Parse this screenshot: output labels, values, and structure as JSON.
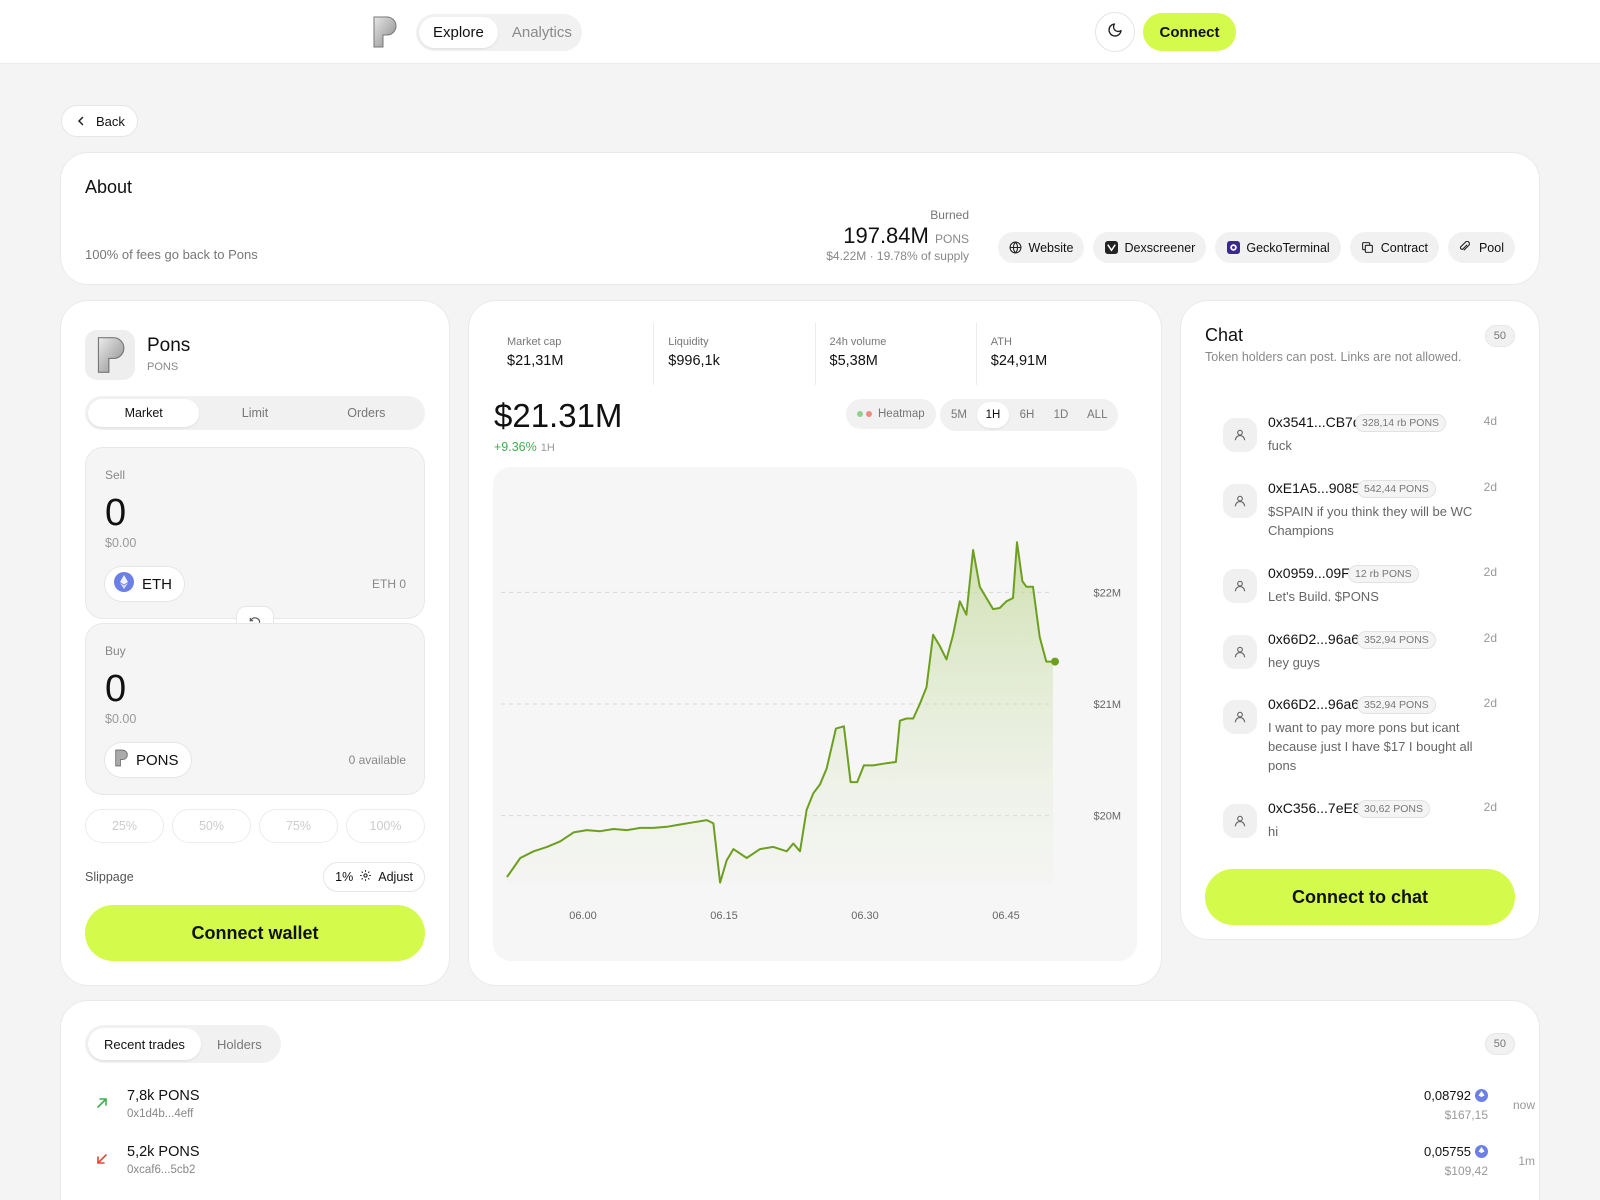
{
  "nav": {
    "tabs": [
      {
        "label": "Explore",
        "active": true
      },
      {
        "label": "Analytics",
        "active": false
      }
    ],
    "connect_label": "Connect"
  },
  "back_label": "Back",
  "about": {
    "title": "About",
    "description": "100% of fees go back to Pons",
    "burned_label": "Burned",
    "burned_value": "197.84M",
    "burned_unit": "PONS",
    "burned_sub": "$4.22M · 19.78% of supply",
    "links": [
      "Website",
      "Dexscreener",
      "GeckoTerminal",
      "Contract",
      "Pool"
    ]
  },
  "token": {
    "name": "Pons",
    "symbol": "PONS"
  },
  "swap": {
    "modes": [
      {
        "label": "Market",
        "active": true
      },
      {
        "label": "Limit",
        "active": false
      },
      {
        "label": "Orders",
        "active": false
      }
    ],
    "sell": {
      "label": "Sell",
      "amount": "0",
      "usd": "$0.00",
      "token": "ETH",
      "balance": "ETH 0"
    },
    "buy": {
      "label": "Buy",
      "amount": "0",
      "usd": "$0.00",
      "token": "PONS",
      "balance": "0 available"
    },
    "percents": [
      "25%",
      "50%",
      "75%",
      "100%"
    ],
    "slippage_label": "Slippage",
    "slippage_value": "1%",
    "adjust_label": "Adjust",
    "connect_wallet_label": "Connect wallet"
  },
  "stats": [
    {
      "label": "Market cap",
      "value": "$21,31M"
    },
    {
      "label": "Liquidity",
      "value": "$996,1k"
    },
    {
      "label": "24h volume",
      "value": "$5,38M"
    },
    {
      "label": "ATH",
      "value": "$24,91M"
    }
  ],
  "price": {
    "value": "$21.31M",
    "change": "+9.36%",
    "timeframe": "1H"
  },
  "heatmap_label": "Heatmap",
  "timeframes": [
    {
      "label": "5M",
      "active": false
    },
    {
      "label": "1H",
      "active": true
    },
    {
      "label": "6H",
      "active": false
    },
    {
      "label": "1D",
      "active": false
    },
    {
      "label": "ALL",
      "active": false
    }
  ],
  "chart_data": {
    "type": "area",
    "title": "",
    "xlabel": "",
    "ylabel": "",
    "x_ticks": [
      "06.00",
      "06.15",
      "06.30",
      "06.45"
    ],
    "y_ticks": [
      "$20M",
      "$21M",
      "$22M"
    ],
    "ylim": [
      19.45,
      22.55
    ],
    "grid": true,
    "legend": "none",
    "color": "#6d9f1e",
    "series": [
      {
        "name": "",
        "points": [
          [
            0,
            19.45
          ],
          [
            1,
            19.62
          ],
          [
            2,
            19.68
          ],
          [
            3,
            19.72
          ],
          [
            4,
            19.77
          ],
          [
            5,
            19.85
          ],
          [
            6,
            19.87
          ],
          [
            7,
            19.86
          ],
          [
            8,
            19.88
          ],
          [
            9,
            19.87
          ],
          [
            10,
            19.89
          ],
          [
            11,
            19.89
          ],
          [
            12,
            19.9
          ],
          [
            13,
            19.92
          ],
          [
            14,
            19.94
          ],
          [
            15,
            19.96
          ],
          [
            15.5,
            19.93
          ],
          [
            16,
            19.4
          ],
          [
            16.5,
            19.6
          ],
          [
            17,
            19.7
          ],
          [
            18,
            19.62
          ],
          [
            19,
            19.7
          ],
          [
            20,
            19.72
          ],
          [
            21,
            19.68
          ],
          [
            21.5,
            19.75
          ],
          [
            22,
            19.68
          ],
          [
            22.5,
            20.05
          ],
          [
            23,
            20.2
          ],
          [
            23.5,
            20.28
          ],
          [
            24,
            20.42
          ],
          [
            24.7,
            20.78
          ],
          [
            25.3,
            20.8
          ],
          [
            25.8,
            20.3
          ],
          [
            26.3,
            20.3
          ],
          [
            26.8,
            20.45
          ],
          [
            27.5,
            20.45
          ],
          [
            28.5,
            20.47
          ],
          [
            29.2,
            20.48
          ],
          [
            29.5,
            20.85
          ],
          [
            30,
            20.87
          ],
          [
            30.5,
            20.87
          ],
          [
            31,
            21.0
          ],
          [
            31.5,
            21.15
          ],
          [
            32,
            21.62
          ],
          [
            32.5,
            21.52
          ],
          [
            33,
            21.4
          ],
          [
            33.5,
            21.62
          ],
          [
            34,
            21.92
          ],
          [
            34.5,
            21.8
          ],
          [
            35,
            22.38
          ],
          [
            35.5,
            22.05
          ],
          [
            36,
            21.95
          ],
          [
            36.5,
            21.85
          ],
          [
            37,
            21.86
          ],
          [
            37.5,
            21.92
          ],
          [
            38,
            21.95
          ],
          [
            38.3,
            22.45
          ],
          [
            38.7,
            22.1
          ],
          [
            39,
            22.05
          ],
          [
            39.5,
            22.05
          ],
          [
            40,
            21.6
          ],
          [
            40.5,
            21.38
          ],
          [
            41,
            21.38
          ]
        ]
      }
    ]
  },
  "chat": {
    "title": "Chat",
    "count": "50",
    "description": "Token holders can post. Links are not allowed.",
    "messages": [
      {
        "who": "0x3541...CB7d",
        "holding": "328,14 rb PONS",
        "ago": "4d",
        "text": "fuck"
      },
      {
        "who": "0xE1A5...9085",
        "holding": "542,44 PONS",
        "ago": "2d",
        "text": "$SPAIN if you think they will be WC Champions"
      },
      {
        "who": "0x0959...09Fe",
        "holding": "12 rb PONS",
        "ago": "2d",
        "text": "Let's Build. $PONS"
      },
      {
        "who": "0x66D2...96a6",
        "holding": "352,94 PONS",
        "ago": "2d",
        "text": "hey guys"
      },
      {
        "who": "0x66D2...96a6",
        "holding": "352,94 PONS",
        "ago": "2d",
        "text": "I want to pay more pons but icant because just I have $17 I bought all pons"
      },
      {
        "who": "0xC356...7eE8",
        "holding": "30,62 PONS",
        "ago": "2d",
        "text": "hi"
      }
    ],
    "connect_label": "Connect to chat"
  },
  "trades": {
    "tabs": [
      {
        "label": "Recent trades",
        "active": true
      },
      {
        "label": "Holders",
        "active": false
      }
    ],
    "count": "50",
    "rows": [
      {
        "side": "buy",
        "amount": "7,8k PONS",
        "addr": "0x1d4b...4eff",
        "price": "0,08792",
        "usd": "$167,15",
        "time": "now"
      },
      {
        "side": "sell",
        "amount": "5,2k PONS",
        "addr": "0xcaf6...5cb2",
        "price": "0,05755",
        "usd": "$109,42",
        "time": "1m"
      }
    ]
  },
  "colors": {
    "accent": "#d4fa4b",
    "chart_line": "#6d9f1e",
    "up": "#3fae4f",
    "down": "#e0483a"
  }
}
